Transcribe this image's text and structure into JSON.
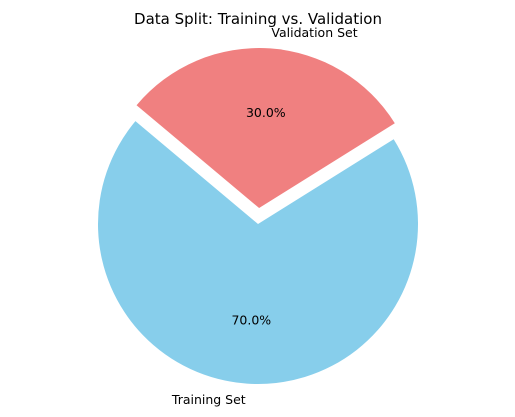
{
  "chart_data": {
    "type": "pie",
    "title": "Data Split: Training vs. Validation",
    "slices": [
      {
        "label": "Training Set",
        "value": 70,
        "percent_label": "70.0%",
        "color": "#87ceeb",
        "explode": 0
      },
      {
        "label": "Validation Set",
        "value": 30,
        "percent_label": "30.0%",
        "color": "#f08080",
        "explode": 0.1
      }
    ],
    "start_angle_deg": 140,
    "legend": "none"
  }
}
